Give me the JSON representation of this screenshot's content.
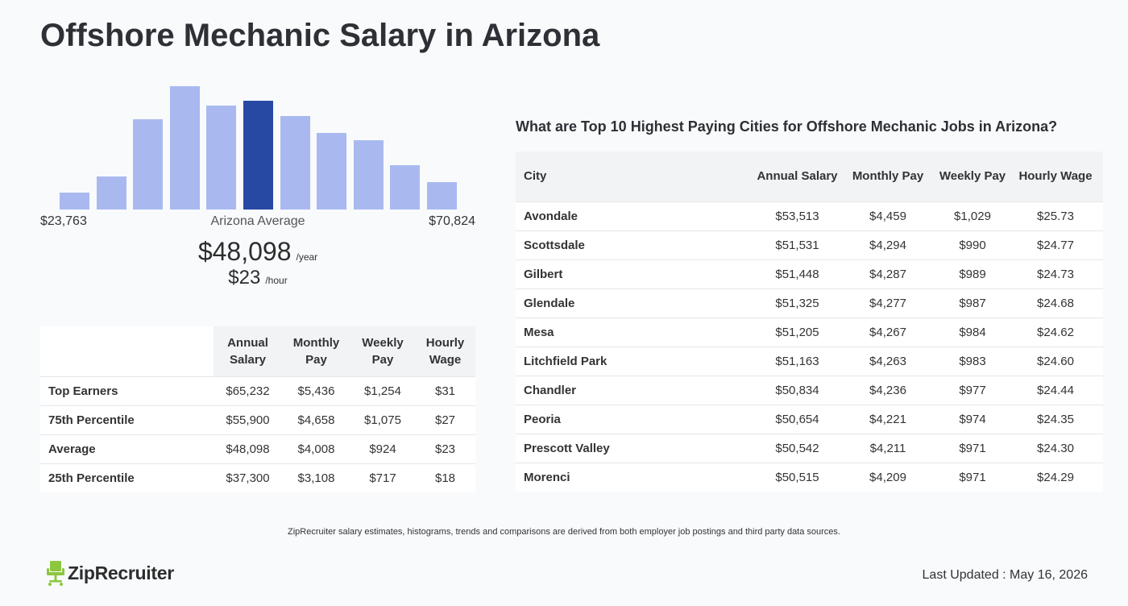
{
  "page_title": "Offshore Mechanic Salary in Arizona",
  "histogram": {
    "bar_color": "#a9b9f0",
    "highlight_color": "#2749a3",
    "relative_heights": [
      0.14,
      0.27,
      0.73,
      1.0,
      0.84,
      0.88,
      0.76,
      0.62,
      0.56,
      0.36,
      0.22
    ],
    "highlight_index": 5,
    "min_label": "$23,763",
    "mid_label": "Arizona Average",
    "max_label": "$70,824"
  },
  "average": {
    "yearly": "$48,098",
    "yearly_unit": "/year",
    "hourly": "$23",
    "hourly_unit": "/hour"
  },
  "percentile_table": {
    "headers": [
      "Annual Salary",
      "Monthly Pay",
      "Weekly Pay",
      "Hourly Wage"
    ],
    "rows": [
      {
        "label": "Top Earners",
        "values": [
          "$65,232",
          "$5,436",
          "$1,254",
          "$31"
        ]
      },
      {
        "label": "75th Percentile",
        "values": [
          "$55,900",
          "$4,658",
          "$1,075",
          "$27"
        ]
      },
      {
        "label": "Average",
        "values": [
          "$48,098",
          "$4,008",
          "$924",
          "$23"
        ]
      },
      {
        "label": "25th Percentile",
        "values": [
          "$37,300",
          "$3,108",
          "$717",
          "$18"
        ]
      }
    ]
  },
  "cities": {
    "title": "What are Top 10 Highest Paying Cities for Offshore Mechanic Jobs in Arizona?",
    "headers": [
      "City",
      "Annual Salary",
      "Monthly Pay",
      "Weekly Pay",
      "Hourly Wage"
    ],
    "rows": [
      {
        "city": "Avondale",
        "values": [
          "$53,513",
          "$4,459",
          "$1,029",
          "$25.73"
        ]
      },
      {
        "city": "Scottsdale",
        "values": [
          "$51,531",
          "$4,294",
          "$990",
          "$24.77"
        ]
      },
      {
        "city": "Gilbert",
        "values": [
          "$51,448",
          "$4,287",
          "$989",
          "$24.73"
        ]
      },
      {
        "city": "Glendale",
        "values": [
          "$51,325",
          "$4,277",
          "$987",
          "$24.68"
        ]
      },
      {
        "city": "Mesa",
        "values": [
          "$51,205",
          "$4,267",
          "$984",
          "$24.62"
        ]
      },
      {
        "city": "Litchfield Park",
        "values": [
          "$51,163",
          "$4,263",
          "$983",
          "$24.60"
        ]
      },
      {
        "city": "Chandler",
        "values": [
          "$50,834",
          "$4,236",
          "$977",
          "$24.44"
        ]
      },
      {
        "city": "Peoria",
        "values": [
          "$50,654",
          "$4,221",
          "$974",
          "$24.35"
        ]
      },
      {
        "city": "Prescott Valley",
        "values": [
          "$50,542",
          "$4,211",
          "$971",
          "$24.30"
        ]
      },
      {
        "city": "Morenci",
        "values": [
          "$50,515",
          "$4,209",
          "$971",
          "$24.29"
        ]
      }
    ]
  },
  "footnote": "ZipRecruiter salary estimates, histograms, trends and comparisons are derived from both employer job postings and third party data sources.",
  "logo": {
    "text": "ZipRecruiter",
    "icon": "ziprecruiter-chair-icon",
    "icon_color": "#8dc63f"
  },
  "last_updated": "Last Updated : May 16, 2026"
}
